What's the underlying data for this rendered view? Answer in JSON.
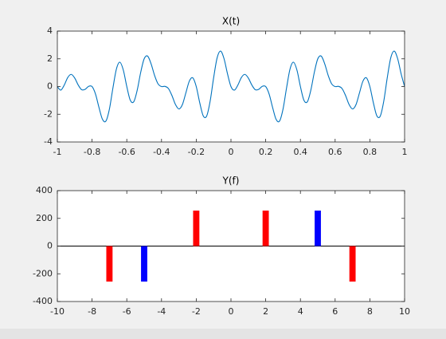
{
  "chart_data": [
    {
      "type": "line",
      "title": "X(t)",
      "color": "#0072bd",
      "xlim": [
        -1,
        1
      ],
      "ylim": [
        -4,
        4
      ],
      "xticks": [
        -1,
        -0.8,
        -0.6,
        -0.4,
        -0.2,
        0,
        0.2,
        0.4,
        0.6,
        0.8,
        1
      ],
      "yticks": [
        -4,
        -2,
        0,
        2,
        4
      ],
      "x": [
        -1,
        -0.98,
        -0.96,
        -0.94,
        -0.92,
        -0.9,
        -0.88,
        -0.86,
        -0.84,
        -0.82,
        -0.8,
        -0.78,
        -0.76,
        -0.74,
        -0.72,
        -0.7,
        -0.68,
        -0.66,
        -0.64,
        -0.62,
        -0.6,
        -0.58,
        -0.56,
        -0.54,
        -0.52,
        -0.5,
        -0.48,
        -0.46,
        -0.44,
        -0.42,
        -0.4,
        -0.38,
        -0.36,
        -0.34,
        -0.32,
        -0.3,
        -0.28,
        -0.26,
        -0.24,
        -0.22,
        -0.2,
        -0.18,
        -0.16,
        -0.14,
        -0.12,
        -0.1,
        -0.08,
        -0.06,
        -0.04,
        -0.02,
        0,
        0.02,
        0.04,
        0.06,
        0.08,
        0.1,
        0.12,
        0.14,
        0.16,
        0.18,
        0.2,
        0.22,
        0.24,
        0.26,
        0.28,
        0.3,
        0.32,
        0.34,
        0.36,
        0.38,
        0.4,
        0.42,
        0.44,
        0.46,
        0.48,
        0.5,
        0.52,
        0.54,
        0.56,
        0.58,
        0.6,
        0.62,
        0.64,
        0.66,
        0.68,
        0.7,
        0.72,
        0.74,
        0.76,
        0.78,
        0.8,
        0.82,
        0.84,
        0.86,
        0.88,
        0.9,
        0.92,
        0.94,
        0.96,
        0.98,
        1
      ],
      "values": [
        0,
        -0.256,
        0.112,
        0.654,
        0.878,
        0.618,
        0.115,
        -0.228,
        -0.204,
        0.014,
        0,
        -0.549,
        -1.517,
        -2.369,
        -2.487,
        -1.618,
        -0.112,
        1.254,
        1.756,
        1.187,
        0,
        -0.982,
        -1.098,
        -0.262,
        1.018,
        2,
        2.194,
        1.64,
        0.804,
        0.194,
        0,
        0.011,
        -0.146,
        -0.648,
        -1.288,
        -1.618,
        -1.311,
        -0.467,
        0.385,
        0.627,
        0,
        -1.162,
        -2.106,
        -2.13,
        -1.061,
        0.618,
        2.054,
        2.556,
        2.014,
        0.92,
        0,
        -0.256,
        0.112,
        0.654,
        0.878,
        0.618,
        0.115,
        -0.228,
        -0.204,
        0.014,
        0,
        -0.549,
        -1.517,
        -2.369,
        -2.487,
        -1.618,
        -0.112,
        1.254,
        1.756,
        1.187,
        0,
        -0.982,
        -1.098,
        -0.262,
        1.018,
        2,
        2.194,
        1.64,
        0.804,
        0.194,
        0,
        0.011,
        -0.146,
        -0.648,
        -1.288,
        -1.618,
        -1.311,
        -0.467,
        0.385,
        0.627,
        0,
        -1.162,
        -2.106,
        -2.13,
        -1.061,
        0.618,
        2.054,
        2.556,
        2.014,
        0.92,
        0
      ]
    },
    {
      "type": "bar",
      "title": "Y(f)",
      "xlim": [
        -10,
        10
      ],
      "ylim": [
        -400,
        400
      ],
      "xticks": [
        -10,
        -8,
        -6,
        -4,
        -2,
        0,
        2,
        4,
        6,
        8,
        10
      ],
      "yticks": [
        -400,
        -200,
        0,
        200,
        400
      ],
      "x": [
        -7,
        -5,
        -2,
        2,
        5,
        7
      ],
      "values": [
        -256,
        -256,
        256,
        256,
        256,
        -256
      ],
      "colors": [
        "#ff0000",
        "#0000ff",
        "#ff0000",
        "#ff0000",
        "#0000ff",
        "#ff0000"
      ]
    }
  ]
}
